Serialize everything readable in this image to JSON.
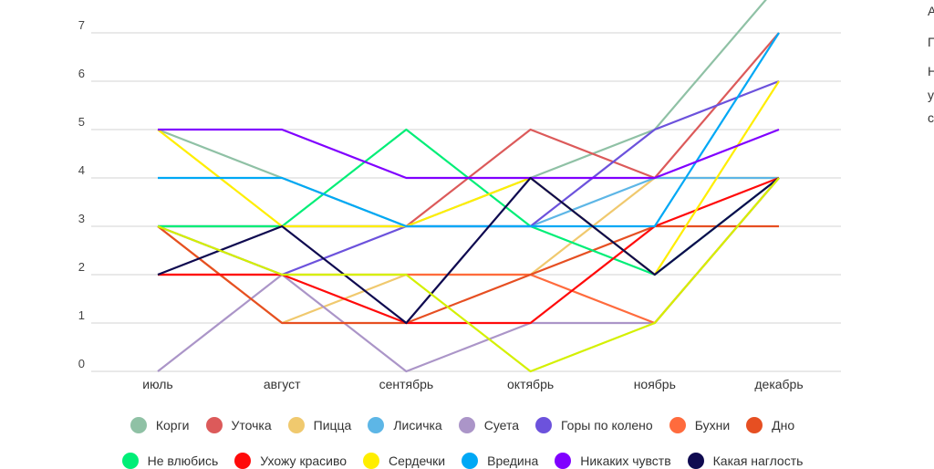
{
  "chart_data": {
    "type": "line",
    "categories": [
      "июль",
      "август",
      "сентябрь",
      "октябрь",
      "ноябрь",
      "декабрь"
    ],
    "y_ticks": [
      "0",
      "1",
      "2",
      "3",
      "4",
      "5",
      "6",
      "7"
    ],
    "ylim": [
      0,
      8
    ],
    "grid": true,
    "legend_placement": "bottom",
    "series": [
      {
        "name": "Корги",
        "color": "#8fc1a5",
        "values": [
          5,
          4,
          3,
          4,
          5,
          8
        ]
      },
      {
        "name": "Уточка",
        "color": "#dc5a5a",
        "values": [
          3,
          3,
          3,
          5,
          4,
          7
        ]
      },
      {
        "name": "Пицца",
        "color": "#f0c96e",
        "values": [
          3,
          1,
          2,
          2,
          4,
          4
        ]
      },
      {
        "name": "Лисичка",
        "color": "#5db6e6",
        "values": [
          3,
          3,
          3,
          3,
          4,
          4
        ]
      },
      {
        "name": "Суета",
        "color": "#ab95c8",
        "values": [
          0,
          2,
          0,
          1,
          1,
          4
        ]
      },
      {
        "name": "Горы по колено",
        "color": "#6c52dc",
        "values": [
          3,
          2,
          3,
          3,
          5,
          6
        ]
      },
      {
        "name": "Бухни",
        "color": "#ff6b3d",
        "values": [
          2,
          2,
          2,
          2,
          1,
          4
        ]
      },
      {
        "name": "Дно",
        "color": "#e64f22",
        "values": [
          3,
          1,
          1,
          2,
          3,
          3
        ]
      },
      {
        "name": "Не влюбись",
        "color": "#00ee77",
        "values": [
          3,
          3,
          5,
          3,
          2,
          4
        ]
      },
      {
        "name": "Ухожу красиво",
        "color": "#ff0a0a",
        "values": [
          2,
          2,
          1,
          1,
          3,
          4
        ]
      },
      {
        "name": "Сердечки",
        "color": "#ffee00",
        "values": [
          5,
          3,
          3,
          4,
          2,
          6
        ]
      },
      {
        "name": "Вредина",
        "color": "#00a8f5",
        "values": [
          4,
          4,
          3,
          3,
          3,
          7
        ]
      },
      {
        "name": "Никаких чувств",
        "color": "#8000ff",
        "values": [
          5,
          5,
          4,
          4,
          4,
          5
        ]
      },
      {
        "name": "Какая наглость",
        "color": "#0f0a50",
        "values": [
          2,
          3,
          1,
          4,
          2,
          4
        ]
      },
      {
        "color": "#d4f000",
        "values": [
          3,
          2,
          2,
          0,
          1,
          4
        ]
      }
    ]
  },
  "side_text": [
    "А",
    "П",
    "Н",
    "у",
    "с"
  ]
}
